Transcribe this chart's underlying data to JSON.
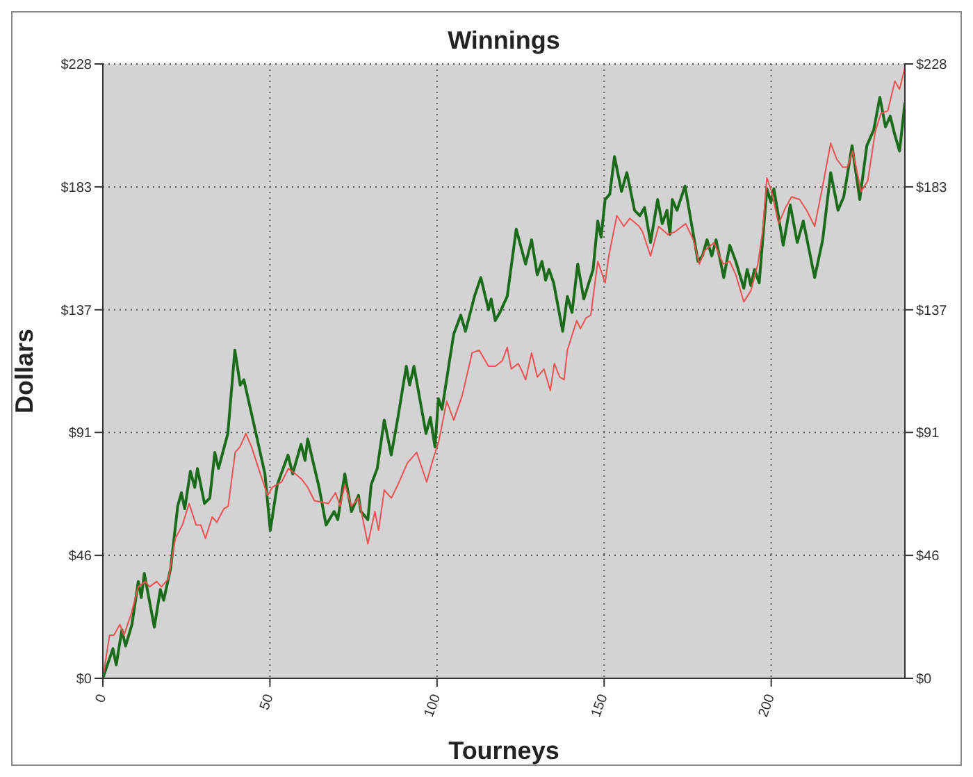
{
  "chart_data": {
    "type": "line",
    "title": "Winnings",
    "xlabel": "Tourneys",
    "ylabel": "Dollars",
    "xlim": [
      0,
      240
    ],
    "xticks": [
      0,
      50,
      100,
      150,
      200
    ],
    "ylim": [
      0,
      228.4
    ],
    "yticks": [
      {
        "value": 0,
        "label": "$0"
      },
      {
        "value": 45.7,
        "label": "$46"
      },
      {
        "value": 91.4,
        "label": "$91"
      },
      {
        "value": 137,
        "label": "$137"
      },
      {
        "value": 182.7,
        "label": "$183"
      },
      {
        "value": 228.4,
        "label": "$228"
      }
    ],
    "y2lim": [
      0,
      228.4
    ],
    "y2ticks": [
      {
        "value": 0,
        "label": "$0"
      },
      {
        "value": 45.7,
        "label": "$46"
      },
      {
        "value": 91.4,
        "label": "$91"
      },
      {
        "value": 137,
        "label": "$137"
      },
      {
        "value": 182.7,
        "label": "$183"
      },
      {
        "value": 228.4,
        "label": "$228"
      }
    ],
    "grid": true,
    "marker": "none",
    "line_style": "solid",
    "series": [
      {
        "color": "#1a6b1a",
        "x": [
          0,
          3,
          4,
          5.7,
          6.8,
          8.7,
          10.6,
          11.5,
          12.4,
          15.4,
          17.2,
          18.2,
          20.3,
          22.4,
          23.5,
          24.5,
          26.2,
          27.5,
          28.3,
          30.4,
          32,
          33.5,
          34.6,
          37.4,
          39.5,
          41.1,
          42.2,
          46,
          48.5,
          50.1,
          52.2,
          55.4,
          56.8,
          59.3,
          60.5,
          61.3,
          64.7,
          66.8,
          69.2,
          70.3,
          72.4,
          74.4,
          76.5,
          77.2,
          79.3,
          80.3,
          82.1,
          84.2,
          86.3,
          88.3,
          90.8,
          91.8,
          93.1,
          96.7,
          98,
          99.4,
          100.4,
          101.5,
          103.6,
          105,
          107.1,
          108.5,
          111.2,
          113.1,
          115.4,
          116.2,
          117.4,
          118.8,
          121,
          123.7,
          126.5,
          128.3,
          130,
          131.4,
          132.5,
          133.5,
          134.9,
          137.6,
          139,
          140.4,
          142.1,
          143.9,
          146.7,
          148.1,
          149.1,
          150.3,
          151.7,
          153.1,
          155.2,
          156.8,
          159.1,
          160.7,
          162.1,
          163.9,
          166,
          167.4,
          168.8,
          169.7,
          170.4,
          171.8,
          174.2,
          176,
          178.1,
          179.4,
          180.8,
          182.2,
          183.5,
          185.8,
          187.6,
          189.4,
          191.8,
          192.8,
          193.9,
          195,
          196.4,
          198.7,
          199.9,
          200.8,
          203.6,
          205.7,
          207.8,
          209.6,
          213,
          215.4,
          217.8,
          220,
          221.7,
          224.2,
          226.5,
          228.6,
          230.7,
          232.5,
          234.2,
          235.6,
          237,
          238.4,
          240
        ],
        "values": [
          0,
          11,
          5,
          18,
          12,
          20,
          36,
          30,
          39,
          19,
          33,
          29,
          41,
          64,
          69,
          63,
          77,
          71,
          78,
          65,
          67,
          84,
          78,
          91,
          122,
          109,
          111,
          90,
          76,
          55,
          72,
          83,
          76,
          87,
          81,
          89,
          71,
          57,
          62,
          59,
          76,
          62,
          68,
          62,
          59,
          72,
          78,
          96,
          83,
          97,
          116,
          109,
          116,
          91,
          97,
          86,
          104,
          100,
          117,
          128,
          135,
          129,
          142,
          149,
          137,
          141,
          133,
          136,
          142,
          167,
          154,
          163,
          150,
          155,
          148,
          152,
          147,
          129,
          142,
          136,
          154,
          141,
          152,
          170,
          164,
          178,
          180,
          194,
          181,
          188,
          174,
          172,
          175,
          162,
          178,
          169,
          174,
          165,
          178,
          174,
          183,
          170,
          155,
          157,
          163,
          157,
          163,
          149,
          161,
          155,
          145,
          152,
          146,
          152,
          147,
          182,
          177,
          182,
          161,
          176,
          162,
          170,
          149,
          163,
          188,
          174,
          179,
          198,
          178,
          198,
          204,
          216,
          205,
          209,
          202,
          196,
          214
        ]
      },
      {
        "color": "#f05050",
        "x": [
          0,
          2,
          3.3,
          5.1,
          6.3,
          8.5,
          10.6,
          12.7,
          14,
          16.1,
          17.5,
          19.6,
          21.7,
          23.8,
          25.8,
          27.9,
          29.3,
          30.7,
          32.7,
          34.1,
          36.2,
          37.5,
          39.6,
          41,
          42.8,
          44.5,
          46.6,
          49.3,
          50.7,
          53.5,
          55.5,
          57.6,
          59.5,
          61.3,
          63.3,
          67.5,
          69.6,
          71,
          72.4,
          74.4,
          76.5,
          79.3,
          81.4,
          82.5,
          84.2,
          86.3,
          88.3,
          91.1,
          93.9,
          96.9,
          98.7,
          100.5,
          102.9,
          105,
          107.5,
          110.5,
          112.6,
          115.4,
          117.4,
          119.5,
          121,
          122.2,
          124.3,
          125.5,
          126.5,
          128.3,
          130,
          132,
          133.9,
          135.1,
          136.7,
          138,
          139,
          141.8,
          142.9,
          144.6,
          146,
          148.1,
          150.3,
          151.4,
          153.8,
          155.9,
          157.7,
          160.5,
          161.5,
          163.9,
          166.3,
          169.1,
          171.2,
          174.4,
          176.7,
          178.5,
          180.1,
          182.9,
          185.6,
          187.6,
          189.4,
          191.8,
          193.9,
          196,
          197.4,
          198.7,
          200.1,
          202.2,
          204.3,
          206.1,
          208.5,
          210.6,
          213,
          215.4,
          217.8,
          219.6,
          221.4,
          222.8,
          224.4,
          226.9,
          228.9,
          231.1,
          232.8,
          234.9,
          237,
          238.4,
          240
        ],
        "values": [
          0,
          16,
          16,
          20,
          16,
          24,
          34,
          36,
          34,
          36,
          34,
          37,
          52,
          57,
          65,
          57,
          57,
          52,
          60,
          58,
          63,
          64,
          84,
          86,
          91,
          86,
          78,
          68,
          71,
          73,
          78,
          76,
          74,
          71,
          66,
          65,
          69,
          64,
          72,
          64,
          67,
          50,
          62,
          55,
          70,
          67,
          72,
          80,
          84,
          73,
          81,
          88,
          103,
          96,
          105,
          121,
          122,
          116,
          116,
          118,
          123,
          115,
          117,
          114,
          111,
          121,
          112,
          115,
          107,
          117,
          112,
          111,
          122,
          133,
          130,
          134,
          135,
          155,
          147,
          157,
          172,
          168,
          171,
          168,
          166,
          157,
          168,
          165,
          166,
          169,
          163,
          154,
          159,
          162,
          154,
          155,
          150,
          140,
          144,
          154,
          166,
          186,
          181,
          169,
          175,
          179,
          178,
          174,
          168,
          183,
          199,
          193,
          190,
          190,
          196,
          181,
          185,
          203,
          210,
          211,
          222,
          219,
          227
        ]
      }
    ]
  }
}
